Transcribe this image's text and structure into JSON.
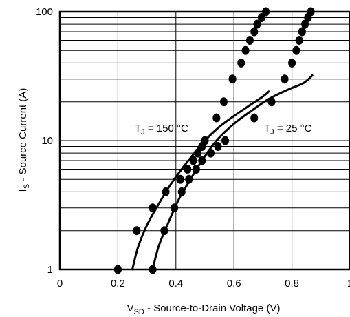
{
  "chart_data": {
    "type": "line",
    "title": "",
    "x_axis": {
      "label_main": "V",
      "label_sub": "SD",
      "label_rest": " - Source-to-Drain Voltage (V)",
      "min": 0,
      "max": 1.0,
      "ticks": [
        0,
        0.2,
        0.4,
        0.6,
        0.8,
        1.0
      ],
      "tick_labels": [
        "0",
        "0.2",
        "0.4",
        "0.6",
        "0.8",
        "1"
      ]
    },
    "y_axis": {
      "label_main": "I",
      "label_sub": "S",
      "label_rest": " - Source Current (A)",
      "scale": "log",
      "min": 1,
      "max": 100,
      "ticks": [
        1,
        10,
        100
      ],
      "tick_labels": [
        "1",
        "10",
        "100"
      ]
    },
    "grid": true,
    "annotations": [
      {
        "text_main": "T",
        "text_sub": "J",
        "text_rest": " = 150 °C",
        "series": "150C"
      },
      {
        "text_main": "T",
        "text_sub": "J",
        "text_rest": " = 25 °C",
        "series": "25C"
      }
    ],
    "series": [
      {
        "id": "150C",
        "line": [
          [
            0.25,
            1
          ],
          [
            0.27,
            1.5
          ],
          [
            0.3,
            2.2
          ],
          [
            0.34,
            3.2
          ],
          [
            0.38,
            4.5
          ],
          [
            0.42,
            6
          ],
          [
            0.46,
            7.8
          ],
          [
            0.5,
            10
          ],
          [
            0.55,
            12.8
          ],
          [
            0.6,
            15.5
          ],
          [
            0.65,
            18.5
          ],
          [
            0.7,
            22
          ],
          [
            0.72,
            24
          ]
        ],
        "points": [
          [
            0.2,
            1
          ],
          [
            0.265,
            2
          ],
          [
            0.32,
            3
          ],
          [
            0.365,
            4
          ],
          [
            0.415,
            5
          ],
          [
            0.44,
            6
          ],
          [
            0.46,
            7
          ],
          [
            0.475,
            8
          ],
          [
            0.49,
            9
          ],
          [
            0.5,
            10
          ],
          [
            0.54,
            15
          ],
          [
            0.565,
            20
          ],
          [
            0.595,
            30
          ],
          [
            0.625,
            40
          ],
          [
            0.64,
            50
          ],
          [
            0.655,
            60
          ],
          [
            0.67,
            70
          ],
          [
            0.68,
            80
          ],
          [
            0.695,
            90
          ],
          [
            0.71,
            100
          ]
        ]
      },
      {
        "id": "25C",
        "line": [
          [
            0.32,
            1
          ],
          [
            0.34,
            1.5
          ],
          [
            0.37,
            2.2
          ],
          [
            0.41,
            3.5
          ],
          [
            0.45,
            5
          ],
          [
            0.49,
            7
          ],
          [
            0.54,
            10
          ],
          [
            0.6,
            13.5
          ],
          [
            0.66,
            17
          ],
          [
            0.72,
            21
          ],
          [
            0.78,
            24.5
          ],
          [
            0.84,
            28
          ],
          [
            0.87,
            32
          ]
        ],
        "points": [
          [
            0.32,
            1
          ],
          [
            0.36,
            2
          ],
          [
            0.395,
            3
          ],
          [
            0.42,
            4
          ],
          [
            0.445,
            5
          ],
          [
            0.47,
            6
          ],
          [
            0.49,
            7
          ],
          [
            0.52,
            8
          ],
          [
            0.545,
            9
          ],
          [
            0.57,
            10
          ],
          [
            0.67,
            15
          ],
          [
            0.73,
            20
          ],
          [
            0.775,
            30
          ],
          [
            0.8,
            40
          ],
          [
            0.815,
            50
          ],
          [
            0.825,
            60
          ],
          [
            0.835,
            70
          ],
          [
            0.845,
            80
          ],
          [
            0.855,
            90
          ],
          [
            0.865,
            100
          ]
        ]
      }
    ]
  }
}
